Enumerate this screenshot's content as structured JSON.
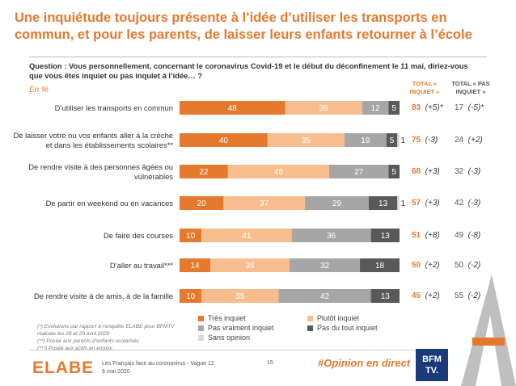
{
  "title": "Une inquiétude toujours présente à l’idée d’utiliser les transports en commun, et pour les parents, de laisser leurs enfants retourner à l’école",
  "question": "Question : Vous personnellement, concernant le coronavirus Covid-19 et le début du déconfinement le 11 mai, diriez-vous que vous êtes inquiet ou pas inquiet à l’idée… ?",
  "unit": "En %",
  "col_total_inquiet": "TOTAL « INQUIET »",
  "col_total_pas_inquiet": "TOTAL « PAS INQUIET »",
  "colors": {
    "tres": "#e5792d",
    "plutot": "#f7bd8e",
    "pas_vraiment": "#a6a6a6",
    "pas_du_tout": "#595959",
    "sans_opinion": "#d9d9d9"
  },
  "chart_data": {
    "type": "bar",
    "orientation": "horizontal-stacked",
    "unit": "%",
    "categories": [
      "D’utiliser les transports en commun",
      "De laisser votre ou vos enfants aller à la crèche et dans les établissements scolaires**",
      "De rendre visite à des personnes âgées ou vulnérables",
      "De partir en weekend ou en vacances",
      "De faire des courses",
      "D’aller au travail***",
      "De rendre visite à de amis, à de la famille"
    ],
    "series": [
      {
        "name": "Très inquiet",
        "values": [
          48,
          40,
          22,
          20,
          10,
          14,
          10
        ]
      },
      {
        "name": "Plutôt inquiet",
        "values": [
          35,
          35,
          46,
          37,
          41,
          36,
          35
        ]
      },
      {
        "name": "Pas vraiment inquiet",
        "values": [
          12,
          19,
          27,
          29,
          36,
          32,
          42
        ]
      },
      {
        "name": "Pas du tout inquiet",
        "values": [
          5,
          5,
          5,
          13,
          13,
          18,
          13
        ]
      },
      {
        "name": "Sans opinion",
        "values": [
          0,
          1,
          0,
          1,
          0,
          0,
          0
        ]
      }
    ],
    "total_inquiet": [
      83,
      75,
      68,
      57,
      51,
      50,
      45
    ],
    "total_inquiet_change": [
      "(+5)*",
      "(-3)",
      "(+3)",
      "(+3)",
      "(+8)",
      "(+2)",
      "(+2)"
    ],
    "total_pas_inquiet": [
      17,
      24,
      32,
      42,
      49,
      50,
      55
    ],
    "total_pas_inquiet_change": [
      "(-5)*",
      "(+2)",
      "(-3)",
      "(-3)",
      "(-8)",
      "(-2)",
      "(-2)"
    ],
    "xlim": [
      0,
      100
    ]
  },
  "legend": {
    "tres": "Très inquiet",
    "plutot": "Plutôt inquiet",
    "pas_vraiment": "Pas vraiment inquiet",
    "pas_du_tout": "Pas du tout inquiet",
    "sans_opinion": "Sans opinion"
  },
  "notes": {
    "n1": "(*) Evolutions par rapport à l’enquête ELABE pour BFMTV",
    "n2": "réalisée les 28 et 29 avril 2020",
    "n3": "(**) Posée aux parents d’enfants scolarisés",
    "n4": "(***) Posée aux actifs en emploi"
  },
  "footer": {
    "logo": "ELABE",
    "survey": "Les Français face au coronavirus - Vague 12",
    "date": "6 mai 2020",
    "page": "15",
    "hashtag": "#Opinion en direct",
    "bfm_line1": "BFM",
    "bfm_line2": "TV."
  }
}
